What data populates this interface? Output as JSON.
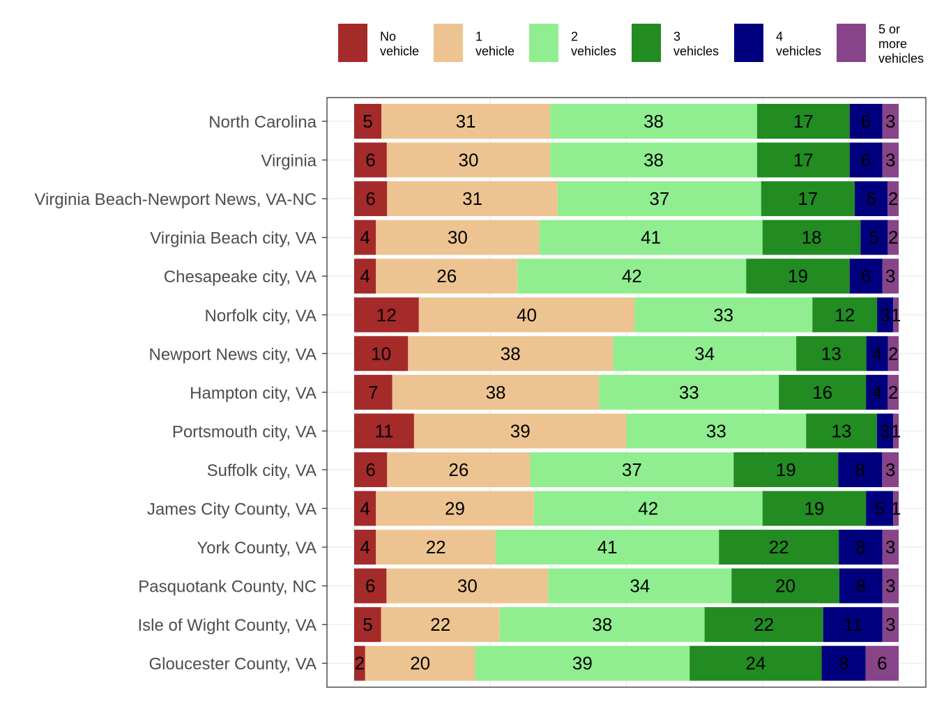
{
  "chart_data": {
    "type": "bar",
    "orientation": "horizontal",
    "stacked": true,
    "title": "",
    "xlabel": "",
    "ylabel": "",
    "categories": [
      "North Carolina",
      "Virginia",
      "Virginia Beach-Newport News, VA-NC",
      "Virginia Beach city, VA",
      "Chesapeake city, VA",
      "Norfolk city, VA",
      "Newport News city, VA",
      "Hampton city, VA",
      "Portsmouth city, VA",
      "Suffolk city, VA",
      "James City County, VA",
      "York County, VA",
      "Pasquotank County, NC",
      "Isle of Wight County, VA",
      "Gloucester County, VA"
    ],
    "series": [
      {
        "name": "No vehicle",
        "legend_lines": [
          "No",
          "vehicle"
        ],
        "color": "#A52A2A",
        "values": [
          5,
          6,
          6,
          4,
          4,
          12,
          10,
          7,
          11,
          6,
          4,
          4,
          6,
          5,
          2
        ]
      },
      {
        "name": "1 vehicle",
        "legend_lines": [
          "1",
          "vehicle"
        ],
        "color": "#EDC491",
        "values": [
          31,
          30,
          31,
          30,
          26,
          40,
          38,
          38,
          39,
          26,
          29,
          22,
          30,
          22,
          20
        ]
      },
      {
        "name": "2 vehicles",
        "legend_lines": [
          "2",
          "vehicles"
        ],
        "color": "#90EE90",
        "values": [
          38,
          38,
          37,
          41,
          42,
          33,
          34,
          33,
          33,
          37,
          42,
          41,
          34,
          38,
          39
        ]
      },
      {
        "name": "3 vehicles",
        "legend_lines": [
          "3",
          "vehicles"
        ],
        "color": "#228B22",
        "values": [
          17,
          17,
          17,
          18,
          19,
          12,
          13,
          16,
          13,
          19,
          19,
          22,
          20,
          22,
          24
        ]
      },
      {
        "name": "4 vehicles",
        "legend_lines": [
          "4",
          "vehicles"
        ],
        "color": "#00007F",
        "values": [
          6,
          6,
          6,
          5,
          6,
          3,
          4,
          4,
          3,
          8,
          5,
          8,
          8,
          11,
          8
        ]
      },
      {
        "name": "5 or more vehicles",
        "legend_lines": [
          "5 or",
          "more",
          "vehicles"
        ],
        "color": "#884488",
        "values": [
          3,
          3,
          2,
          2,
          3,
          1,
          2,
          2,
          1,
          3,
          1,
          3,
          3,
          3,
          6
        ]
      }
    ],
    "legend_position": "top",
    "grid": true
  }
}
